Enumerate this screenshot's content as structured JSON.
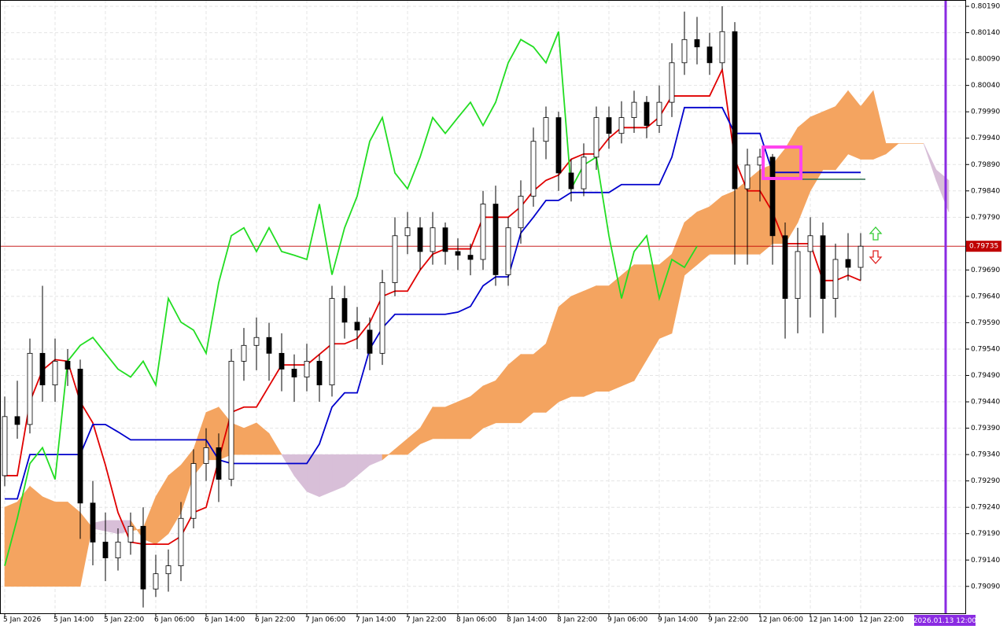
{
  "chart_data": {
    "type": "candlestick",
    "x_labels": [
      "5 Jan 2026",
      "5 Jan 14:00",
      "5 Jan 22:00",
      "6 Jan 06:00",
      "6 Jan 14:00",
      "6 Jan 22:00",
      "7 Jan 06:00",
      "7 Jan 14:00",
      "7 Jan 22:00",
      "8 Jan 06:00",
      "8 Jan 14:00",
      "8 Jan 22:00",
      "9 Jan 06:00",
      "9 Jan 14:00",
      "9 Jan 22:00",
      "12 Jan 06:00",
      "12 Jan 14:00",
      "12 Jan 22:00"
    ],
    "cursor_label": "2026.01.13 12:00",
    "open": [
      0.793,
      0.79412,
      0.79397,
      0.79532,
      0.79472,
      0.79517,
      0.79502,
      0.79248,
      0.79174,
      0.79144,
      0.79174,
      0.79204,
      0.79085,
      0.79114,
      0.79129,
      0.79219,
      0.79323,
      0.79353,
      0.79293,
      0.79517,
      0.79547,
      0.79562,
      0.79532,
      0.79502,
      0.79487,
      0.79517,
      0.79472,
      0.79636,
      0.79591,
      0.79576,
      0.79532,
      0.79666,
      0.79755,
      0.7977,
      0.79725,
      0.7977,
      0.79725,
      0.79718,
      0.7971,
      0.79815,
      0.79681,
      0.7977,
      0.7983,
      0.79934,
      0.79979,
      0.79874,
      0.79844,
      0.79904,
      0.79979,
      0.79949,
      0.79979,
      0.80008,
      0.79964,
      0.80008,
      0.80083,
      0.80127,
      0.80113,
      0.80083,
      0.80142,
      0.79844,
      0.79889,
      0.79904,
      0.79755,
      0.79636,
      0.79725,
      0.79755,
      0.79636,
      0.7971,
      0.79695
    ],
    "high": [
      0.7945,
      0.7948,
      0.7956,
      0.7966,
      0.7956,
      0.7954,
      0.7952,
      0.7929,
      0.7923,
      0.792,
      0.7923,
      0.7924,
      0.7915,
      0.7916,
      0.7925,
      0.7935,
      0.7939,
      0.7938,
      0.7954,
      0.7958,
      0.796,
      0.7959,
      0.7957,
      0.7953,
      0.7955,
      0.7953,
      0.7966,
      0.7966,
      0.7962,
      0.796,
      0.7969,
      0.7979,
      0.798,
      0.7979,
      0.798,
      0.7978,
      0.7975,
      0.7974,
      0.7984,
      0.7985,
      0.7979,
      0.7986,
      0.7996,
      0.8,
      0.7999,
      0.799,
      0.7993,
      0.8,
      0.8,
      0.8001,
      0.8003,
      0.8002,
      0.8004,
      0.8012,
      0.8018,
      0.8017,
      0.8014,
      0.8019,
      0.8016,
      0.7992,
      0.7992,
      0.7991,
      0.7978,
      0.7977,
      0.7979,
      0.7978,
      0.7974,
      0.7976,
      0.7976
    ],
    "low": [
      0.7928,
      0.7937,
      0.7938,
      0.7944,
      0.7944,
      0.7947,
      0.7918,
      0.7913,
      0.791,
      0.7912,
      0.7915,
      0.7905,
      0.7907,
      0.7908,
      0.791,
      0.792,
      0.7929,
      0.7925,
      0.7928,
      0.7948,
      0.795,
      0.7948,
      0.7946,
      0.7944,
      0.7946,
      0.7944,
      0.7945,
      0.7956,
      0.7954,
      0.795,
      0.7951,
      0.7964,
      0.7972,
      0.7969,
      0.797,
      0.797,
      0.7969,
      0.7968,
      0.7969,
      0.7966,
      0.7966,
      0.7974,
      0.7981,
      0.799,
      0.7984,
      0.7982,
      0.7983,
      0.7988,
      0.7992,
      0.7993,
      0.7995,
      0.7994,
      0.7995,
      0.7998,
      0.8006,
      0.8008,
      0.8006,
      0.8007,
      0.797,
      0.797,
      0.7982,
      0.797,
      0.7956,
      0.7957,
      0.796,
      0.7957,
      0.796,
      0.7967,
      0.7967
    ],
    "close": [
      0.79412,
      0.79397,
      0.79532,
      0.79472,
      0.79517,
      0.79502,
      0.79248,
      0.79174,
      0.79144,
      0.79174,
      0.79204,
      0.79085,
      0.79114,
      0.79129,
      0.79219,
      0.79323,
      0.79353,
      0.79293,
      0.79517,
      0.79547,
      0.79562,
      0.79532,
      0.79502,
      0.79487,
      0.79517,
      0.79472,
      0.79636,
      0.79591,
      0.79576,
      0.79532,
      0.79666,
      0.79755,
      0.7977,
      0.79725,
      0.7977,
      0.79725,
      0.79718,
      0.7971,
      0.79815,
      0.79681,
      0.7977,
      0.7983,
      0.79934,
      0.79979,
      0.79874,
      0.79844,
      0.79904,
      0.79979,
      0.79949,
      0.79979,
      0.80008,
      0.79964,
      0.80008,
      0.80083,
      0.80127,
      0.80113,
      0.80083,
      0.80142,
      0.79844,
      0.79889,
      0.79904,
      0.79755,
      0.79636,
      0.79725,
      0.79755,
      0.79636,
      0.7971,
      0.79695,
      0.79735
    ],
    "up_color": "#ffffff",
    "down_color": "#000000",
    "lines": [
      {
        "color": "#e00000",
        "values": [
          0.793,
          0.793,
          0.7944,
          0.795,
          0.7952,
          0.79517,
          0.7944,
          0.794,
          0.7932,
          0.7923,
          0.79174,
          0.7917,
          0.7917,
          0.7917,
          0.79185,
          0.7923,
          0.7924,
          0.7933,
          0.7942,
          0.7943,
          0.7943,
          0.7947,
          0.7951,
          0.7951,
          0.7951,
          0.7953,
          0.7955,
          0.7955,
          0.7956,
          0.7959,
          0.7964,
          0.7965,
          0.7965,
          0.7969,
          0.7972,
          0.7973,
          0.7973,
          0.7973,
          0.7979,
          0.7979,
          0.7979,
          0.7981,
          0.7984,
          0.7986,
          0.7987,
          0.799,
          0.7991,
          0.7991,
          0.7994,
          0.7996,
          0.7996,
          0.7996,
          0.7998,
          0.8002,
          0.8002,
          0.8002,
          0.8002,
          0.8007,
          0.799,
          0.7984,
          0.7984,
          0.798,
          0.7974,
          0.7974,
          0.7974,
          0.7967,
          0.7967,
          0.7968,
          0.7967
        ]
      },
      {
        "color": "#0000cc",
        "values": [
          0.79256,
          0.79256,
          0.7934,
          0.7934,
          0.7934,
          0.7934,
          0.7934,
          0.79397,
          0.79397,
          0.79383,
          0.79368,
          0.79368,
          0.79368,
          0.79368,
          0.79368,
          0.79368,
          0.79368,
          0.7933,
          0.79323,
          0.79323,
          0.79323,
          0.79323,
          0.79323,
          0.79323,
          0.79323,
          0.7936,
          0.7943,
          0.79457,
          0.79457,
          0.7954,
          0.7958,
          0.79606,
          0.79606,
          0.79606,
          0.79606,
          0.79606,
          0.7961,
          0.79621,
          0.7966,
          0.79677,
          0.79677,
          0.7976,
          0.7979,
          0.79822,
          0.79822,
          0.79837,
          0.79837,
          0.79837,
          0.79837,
          0.79852,
          0.79852,
          0.79852,
          0.79852,
          0.79904,
          0.79998,
          0.79998,
          0.79998,
          0.79998,
          0.79949,
          0.79949,
          0.79949,
          0.79875,
          0.79875,
          0.79875,
          0.79875,
          0.79875,
          0.79875,
          0.79875,
          0.79875
        ]
      },
      {
        "color": "#22dd22",
        "values": [
          0.79129,
          0.79219,
          0.79323,
          0.79353,
          0.79293,
          0.79517,
          0.79547,
          0.79562,
          0.79532,
          0.79502,
          0.79487,
          0.79517,
          0.79472,
          0.79636,
          0.79591,
          0.79576,
          0.79532,
          0.79666,
          0.79755,
          0.7977,
          0.79725,
          0.7977,
          0.79725,
          0.79718,
          0.7971,
          0.79815,
          0.79681,
          0.7977,
          0.7983,
          0.79934,
          0.79979,
          0.79874,
          0.79844,
          0.79904,
          0.79979,
          0.79949,
          0.79979,
          0.80008,
          0.79964,
          0.80008,
          0.80083,
          0.80127,
          0.80113,
          0.80083,
          0.80142,
          0.79844,
          0.79889,
          0.79904,
          0.79755,
          0.79636,
          0.79725,
          0.79755,
          0.79636,
          0.7971,
          0.79695,
          0.79735
        ]
      }
    ],
    "cloud": {
      "bull_color": "#f4a460",
      "bear_color": "#d8bfd8",
      "span_a": [
        0.7924,
        0.7925,
        0.7928,
        0.7926,
        0.7925,
        0.7925,
        0.7923,
        0.792,
        0.79195,
        0.7919,
        0.79195,
        0.792,
        0.7926,
        0.793,
        0.7932,
        0.7935,
        0.7942,
        0.7943,
        0.794,
        0.7939,
        0.794,
        0.7938,
        0.7934,
        0.793,
        0.7927,
        0.7926,
        0.7927,
        0.7928,
        0.793,
        0.7932,
        0.7933,
        0.7935,
        0.7937,
        0.7939,
        0.7943,
        0.7943,
        0.7944,
        0.7945,
        0.7947,
        0.7948,
        0.7951,
        0.7953,
        0.7953,
        0.7955,
        0.7962,
        0.7964,
        0.7965,
        0.7966,
        0.7966,
        0.7968,
        0.797,
        0.797,
        0.797,
        0.7972,
        0.7978,
        0.798,
        0.7981,
        0.7983,
        0.7984,
        0.7986,
        0.7988,
        0.7989,
        0.7992,
        0.7996,
        0.7998,
        0.7999,
        0.8,
        0.8003,
        0.8,
        0.8003,
        0.7993,
        0.7993,
        0.7993,
        0.7993,
        0.7986,
        0.798
      ],
      "span_b": [
        0.7909,
        0.7909,
        0.7909,
        0.7909,
        0.7909,
        0.7909,
        0.7909,
        0.7921,
        0.79215,
        0.79215,
        0.79215,
        0.7918,
        0.7917,
        0.7919,
        0.7923,
        0.793,
        0.7933,
        0.7933,
        0.7934,
        0.7934,
        0.7934,
        0.7934,
        0.7934,
        0.7934,
        0.7934,
        0.7934,
        0.7934,
        0.7934,
        0.7934,
        0.7934,
        0.7934,
        0.7934,
        0.7934,
        0.7936,
        0.7937,
        0.7937,
        0.7937,
        0.7937,
        0.7939,
        0.794,
        0.794,
        0.794,
        0.7942,
        0.7942,
        0.7944,
        0.7945,
        0.7945,
        0.7946,
        0.7946,
        0.7947,
        0.7948,
        0.7952,
        0.7956,
        0.7957,
        0.7968,
        0.797,
        0.7972,
        0.7972,
        0.7972,
        0.7972,
        0.7972,
        0.7974,
        0.7974,
        0.7978,
        0.7984,
        0.7988,
        0.7988,
        0.7991,
        0.799,
        0.799,
        0.7991,
        0.7993,
        0.7993,
        0.7993,
        0.7988,
        0.7986
      ]
    },
    "price_line": {
      "value": 0.79735,
      "color": "#c00000"
    },
    "ylim": [
      0.79039,
      0.80202
    ],
    "yticks": [
      {
        "value": 0.8019,
        "label": "0.80190"
      },
      {
        "value": 0.8014,
        "label": "0.80140"
      },
      {
        "value": 0.8009,
        "label": "0.80090"
      },
      {
        "value": 0.8004,
        "label": "0.80040"
      },
      {
        "value": 0.7999,
        "label": "0.79990"
      },
      {
        "value": 0.7994,
        "label": "0.79940"
      },
      {
        "value": 0.7989,
        "label": "0.79890"
      },
      {
        "value": 0.7984,
        "label": "0.79840"
      },
      {
        "value": 0.7979,
        "label": "0.79790"
      },
      {
        "value": 0.7969,
        "label": "0.79690"
      },
      {
        "value": 0.7964,
        "label": "0.79640"
      },
      {
        "value": 0.7959,
        "label": "0.79590"
      },
      {
        "value": 0.7954,
        "label": "0.79540"
      },
      {
        "value": 0.7949,
        "label": "0.79490"
      },
      {
        "value": 0.7944,
        "label": "0.79440"
      },
      {
        "value": 0.7939,
        "label": "0.79390"
      },
      {
        "value": 0.7934,
        "label": "0.79340"
      },
      {
        "value": 0.7929,
        "label": "0.79290"
      },
      {
        "value": 0.7924,
        "label": "0.79240"
      },
      {
        "value": 0.7919,
        "label": "0.79190"
      },
      {
        "value": 0.7914,
        "label": "0.79140"
      },
      {
        "value": 0.7909,
        "label": "0.79090"
      }
    ],
    "grid": true
  }
}
